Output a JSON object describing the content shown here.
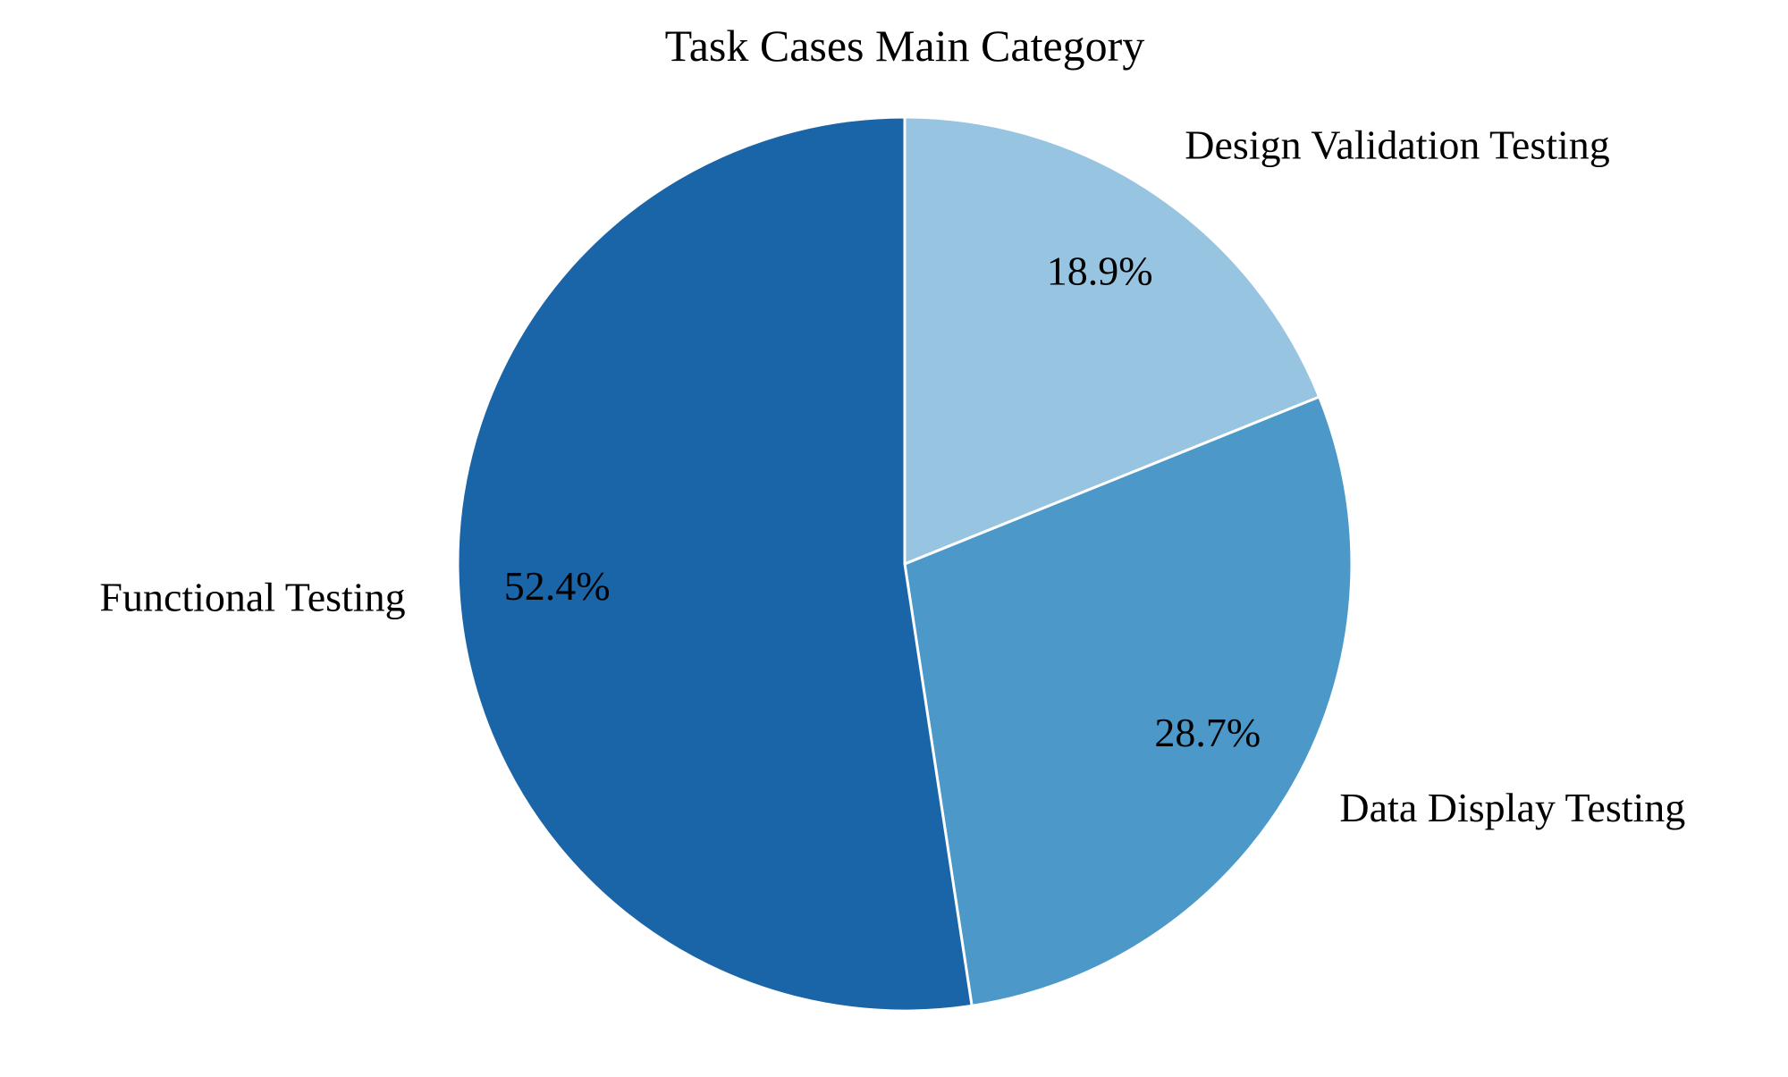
{
  "chart_data": {
    "type": "pie",
    "title": "Task Cases Main Category",
    "start_angle_deg": 90,
    "direction": "clockwise",
    "slices": [
      {
        "label": "Design Validation Testing",
        "value": 18.9,
        "pct_label": "18.9%",
        "color": "#97c4e1"
      },
      {
        "label": "Data Display Testing",
        "value": 28.7,
        "pct_label": "28.7%",
        "color": "#4b98c9"
      },
      {
        "label": "Functional Testing",
        "value": 52.4,
        "pct_label": "52.4%",
        "color": "#1a64a8"
      }
    ],
    "edge_color": "#ffffff"
  }
}
